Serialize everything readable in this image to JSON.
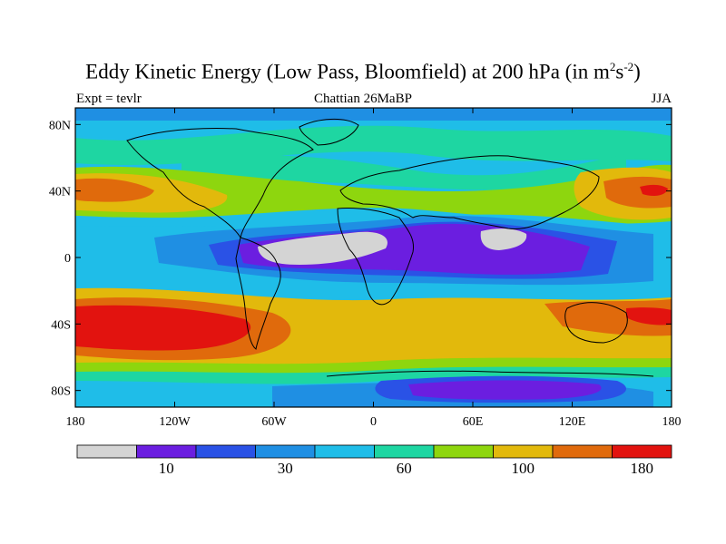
{
  "title": {
    "main": "Eddy Kinetic Energy (Low Pass, Bloomfield) at 200 hPa (in m",
    "sup1": "2",
    "mid": "s",
    "sup2": "-2",
    "close": ")"
  },
  "subtitle_left": "Expt = tevlr",
  "subtitle_center": "Chattian  26MaBP",
  "subtitle_right": "JJA",
  "map": {
    "projection": "cylindrical-equidistant",
    "lon_range": [
      -180,
      180
    ],
    "lat_range": [
      -90,
      90
    ],
    "y_ticks": [
      {
        "label": "80N",
        "lat": 80
      },
      {
        "label": "40N",
        "lat": 40
      },
      {
        "label": "0",
        "lat": 0
      },
      {
        "label": "40S",
        "lat": -40
      },
      {
        "label": "80S",
        "lat": -80
      }
    ],
    "x_ticks": [
      {
        "label": "180",
        "lon": -180
      },
      {
        "label": "120W",
        "lon": -120
      },
      {
        "label": "60W",
        "lon": -60
      },
      {
        "label": "0",
        "lon": 0
      },
      {
        "label": "60E",
        "lon": 60
      },
      {
        "label": "120E",
        "lon": 120
      },
      {
        "label": "180",
        "lon": 180
      }
    ]
  },
  "colorbar": {
    "colors": [
      "#d4d4d4",
      "#6b1ee0",
      "#2a52e6",
      "#1f8fe3",
      "#1fbde8",
      "#1ed6a2",
      "#8ed60e",
      "#e2b90c",
      "#e06a0c",
      "#e2130f"
    ],
    "labels": [
      {
        "label": "10",
        "index": 1
      },
      {
        "label": "30",
        "index": 3
      },
      {
        "label": "60",
        "index": 5
      },
      {
        "label": "100",
        "index": 7
      },
      {
        "label": "180",
        "index": 9
      }
    ]
  }
}
